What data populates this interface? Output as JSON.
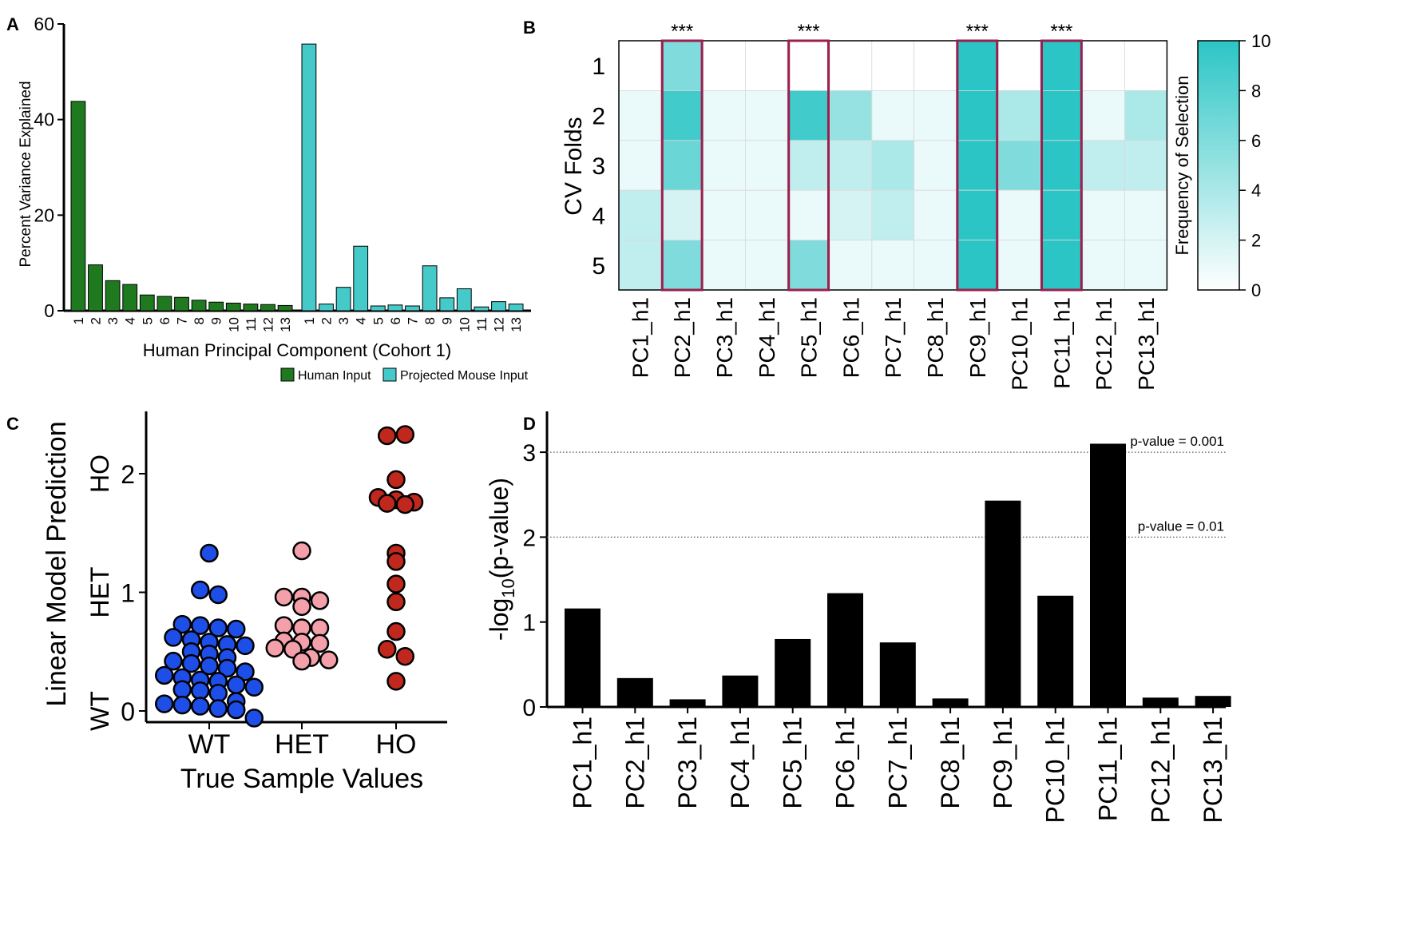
{
  "colors": {
    "human": "#1f7a1f",
    "mouse": "#45c9c9",
    "heat_high": "#2cc5c5",
    "highlight": "#9c1f4e",
    "wt": "#1d4fe8",
    "het": "#f4a0aa",
    "ho": "#c0281e",
    "bar": "#000000"
  },
  "chart_data": [
    {
      "panel": "A",
      "type": "bar",
      "xlabel": "Human Principal Component (Cohort 1)",
      "ylabel": "Percent Variance Explained",
      "ylim": [
        0,
        60
      ],
      "yticks": [
        "0",
        "20",
        "40",
        "60"
      ],
      "categories": [
        "1",
        "2",
        "3",
        "4",
        "5",
        "6",
        "7",
        "8",
        "9",
        "10",
        "11",
        "12",
        "13"
      ],
      "series": [
        {
          "name": "Human Input",
          "values": [
            43.8,
            9.6,
            6.3,
            5.5,
            3.3,
            3.0,
            2.8,
            2.2,
            1.8,
            1.6,
            1.4,
            1.3,
            1.1
          ]
        },
        {
          "name": "Projected Mouse Input",
          "values": [
            55.8,
            1.4,
            4.9,
            13.5,
            1.0,
            1.2,
            1.0,
            9.4,
            2.7,
            4.6,
            0.8,
            1.9,
            1.4
          ]
        }
      ]
    },
    {
      "panel": "B",
      "type": "heatmap",
      "ylabel": "CV Folds",
      "rows": [
        "1",
        "2",
        "3",
        "4",
        "5"
      ],
      "columns": [
        "PC1_h1",
        "PC2_h1",
        "PC3_h1",
        "PC4_h1",
        "PC5_h1",
        "PC6_h1",
        "PC7_h1",
        "PC8_h1",
        "PC9_h1",
        "PC10_h1",
        "PC11_h1",
        "PC12_h1",
        "PC13_h1"
      ],
      "values": [
        [
          0,
          6,
          0,
          0,
          0,
          0,
          0,
          0,
          10,
          0,
          10,
          0,
          0
        ],
        [
          1,
          9,
          1,
          1,
          9,
          5,
          1,
          1,
          10,
          4,
          10,
          1,
          4
        ],
        [
          1,
          7,
          1,
          1,
          3,
          3,
          4,
          1,
          10,
          6,
          10,
          3,
          3
        ],
        [
          3,
          2,
          1,
          1,
          1,
          2,
          3,
          1,
          10,
          1,
          10,
          1,
          1
        ],
        [
          3,
          6,
          1,
          1,
          6,
          1,
          1,
          1,
          10,
          1,
          10,
          1,
          1
        ]
      ],
      "highlighted_columns": [
        "PC2_h1",
        "PC5_h1",
        "PC9_h1",
        "PC11_h1"
      ],
      "significance_label": "***",
      "colorbar": {
        "label": "Frequency of Selection",
        "range": [
          0,
          10
        ],
        "ticks": [
          "0",
          "2",
          "4",
          "6",
          "8",
          "10"
        ]
      }
    },
    {
      "panel": "C",
      "type": "scatter",
      "xlabel": "True Sample Values",
      "ylabel": "Linear Model Prediction",
      "ylim": [
        0,
        2.5
      ],
      "yticks": [
        "0",
        "1",
        "2"
      ],
      "ytick_group_labels": [
        "WT",
        "HET",
        "HO"
      ],
      "categories": [
        "WT",
        "HET",
        "HO"
      ],
      "series": [
        {
          "name": "WT",
          "values": [
            1.33,
            1.02,
            0.98,
            0.73,
            0.72,
            0.7,
            0.69,
            0.62,
            0.6,
            0.58,
            0.56,
            0.55,
            0.5,
            0.48,
            0.45,
            0.42,
            0.4,
            0.38,
            0.36,
            0.33,
            0.3,
            0.28,
            0.26,
            0.25,
            0.22,
            0.2,
            0.18,
            0.17,
            0.15,
            0.08,
            0.06,
            0.05,
            0.04,
            0.02,
            0.01,
            -0.06
          ]
        },
        {
          "name": "HET",
          "values": [
            1.35,
            0.96,
            0.96,
            0.93,
            0.88,
            0.72,
            0.7,
            0.7,
            0.59,
            0.58,
            0.57,
            0.53,
            0.52,
            0.45,
            0.43,
            0.42
          ]
        },
        {
          "name": "HO",
          "values": [
            2.32,
            2.33,
            1.95,
            1.8,
            1.78,
            1.76,
            1.75,
            1.74,
            1.33,
            1.26,
            1.07,
            0.92,
            0.67,
            0.52,
            0.46,
            0.25
          ]
        }
      ]
    },
    {
      "panel": "D",
      "type": "bar",
      "ylabel": "-log",
      "ylabel_sub": "10",
      "ylabel_suffix": "(p-value)",
      "ylim": [
        0,
        3.5
      ],
      "yticks": [
        "0",
        "1",
        "2",
        "3"
      ],
      "categories": [
        "PC1_h1",
        "PC2_h1",
        "PC3_h1",
        "PC4_h1",
        "PC5_h1",
        "PC6_h1",
        "PC7_h1",
        "PC8_h1",
        "PC9_h1",
        "PC10_h1",
        "PC11_h1",
        "PC12_h1",
        "PC13_h1"
      ],
      "values": [
        1.16,
        0.34,
        0.09,
        0.37,
        0.8,
        1.34,
        0.76,
        0.1,
        2.43,
        1.31,
        3.1,
        0.11,
        0.13
      ],
      "reference_lines": [
        {
          "y": 3,
          "label": "p-value = 0.001"
        },
        {
          "y": 2,
          "label": "p-value = 0.01"
        }
      ]
    }
  ]
}
